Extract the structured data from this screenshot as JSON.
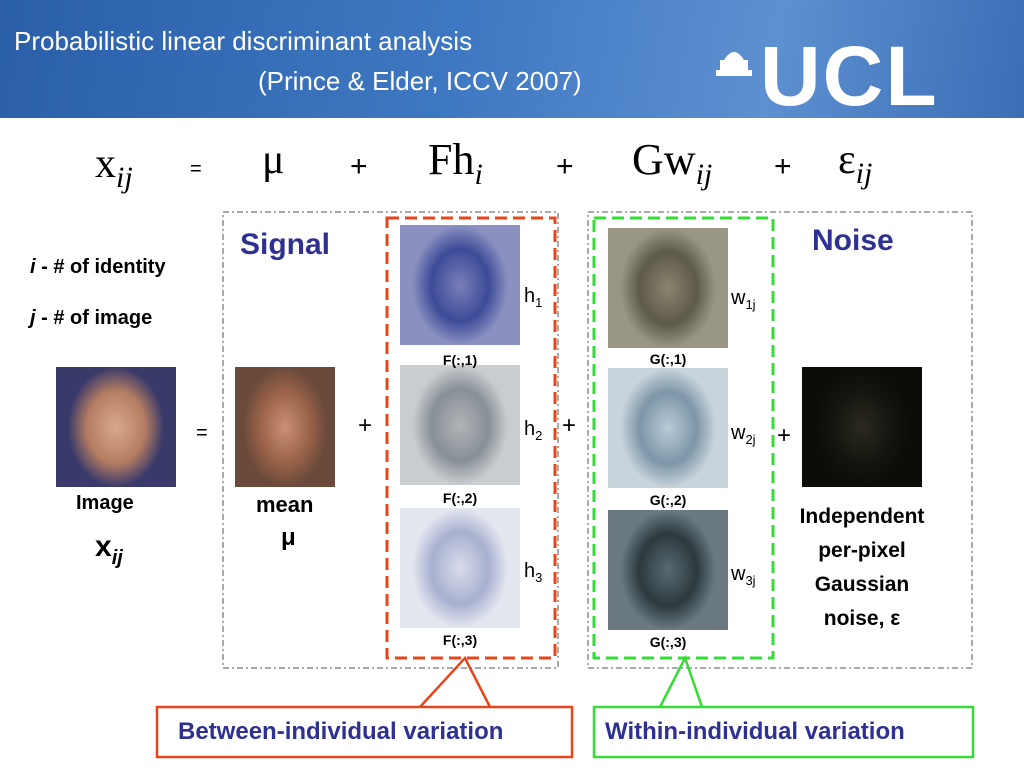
{
  "header": {
    "title": "Probabilistic linear discriminant analysis",
    "citation": "(Prince & Elder, ICCV  2007)",
    "logo": "UCL"
  },
  "equation": {
    "lhs": {
      "base": "x",
      "sub": "ij"
    },
    "equals": "=",
    "mean": "μ",
    "plus": [
      "+",
      "+",
      "+"
    ],
    "between": {
      "base": "Fh",
      "sub": "i"
    },
    "within": {
      "base": "Gw",
      "sub": "ij"
    },
    "noise": {
      "base": "ε",
      "sub": "ij"
    }
  },
  "notes": [
    {
      "var": "i",
      "text": " - # of identity"
    },
    {
      "var": "j",
      "text": " - # of image"
    }
  ],
  "signal": {
    "label": "Signal"
  },
  "noise": {
    "label": "Noise"
  },
  "image": {
    "label": "Image",
    "symbol": "x",
    "sub": "ij"
  },
  "mean": {
    "label": "mean",
    "symbol": "μ"
  },
  "operators": [
    "=",
    "+",
    "+",
    "+"
  ],
  "F": [
    {
      "caption": "F(:,1)",
      "coef": "h",
      "sub": "1"
    },
    {
      "caption": "F(:,2)",
      "coef": "h",
      "sub": "2"
    },
    {
      "caption": "F(:,3)",
      "coef": "h",
      "sub": "3"
    }
  ],
  "G": [
    {
      "caption": "G(:,1)",
      "coef": "w",
      "sub": "1j"
    },
    {
      "caption": "G(:,2)",
      "coef": "w",
      "sub": "2j"
    },
    {
      "caption": "G(:,3)",
      "coef": "w",
      "sub": "3j"
    }
  ],
  "noise_image": {
    "lines": [
      "Independent",
      "per-pixel",
      "Gaussian",
      "noise, ε"
    ]
  },
  "callouts": {
    "between": "Between-individual variation",
    "within": "Within-individual variation"
  }
}
